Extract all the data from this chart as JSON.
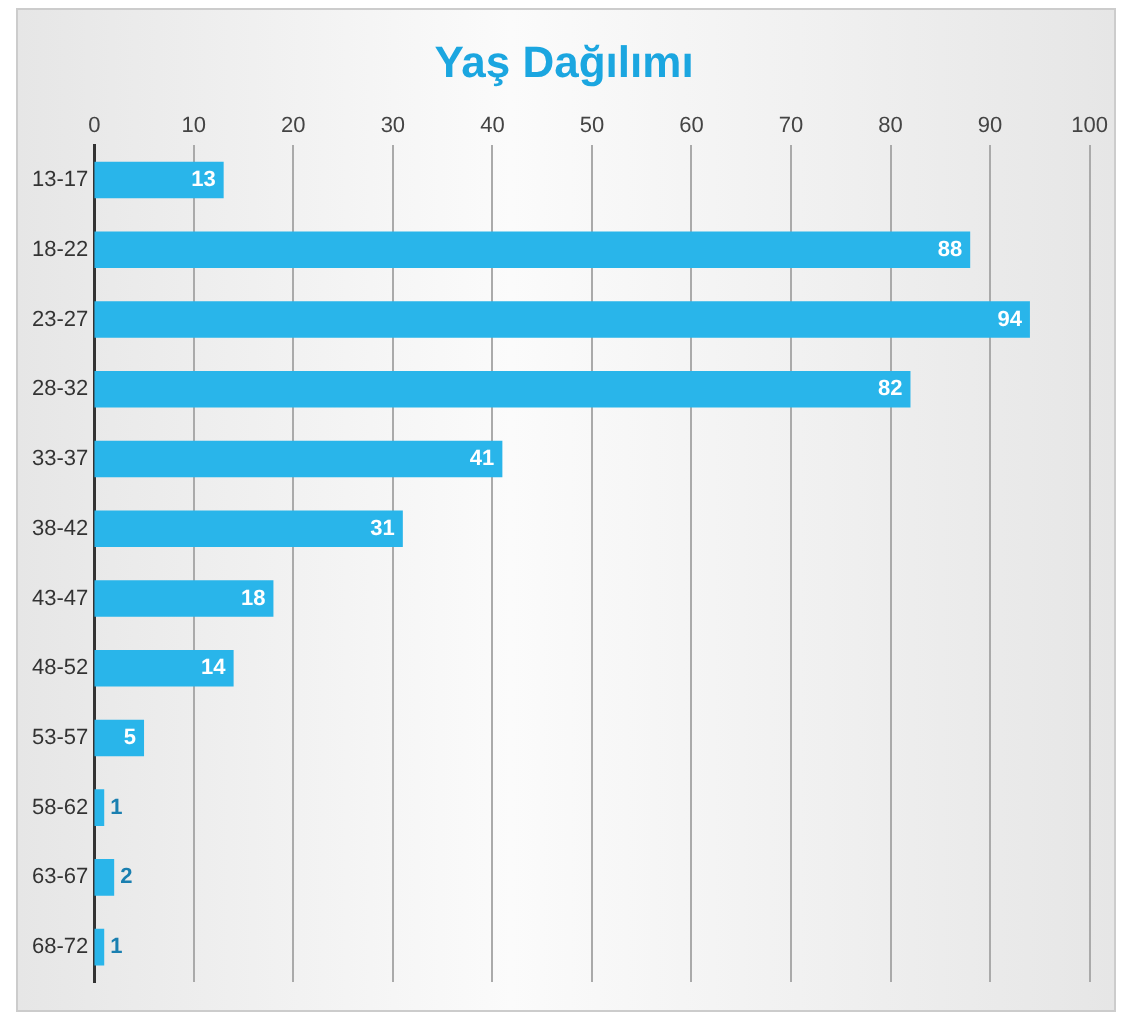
{
  "chart_data": {
    "type": "bar",
    "orientation": "horizontal",
    "title": "Yaş Dağılımı",
    "categories": [
      "13-17",
      "18-22",
      "23-27",
      "28-32",
      "33-37",
      "38-42",
      "43-47",
      "48-52",
      "53-57",
      "58-62",
      "63-67",
      "68-72"
    ],
    "values": [
      13,
      88,
      94,
      82,
      41,
      31,
      18,
      14,
      5,
      1,
      2,
      1
    ],
    "color": "#29b5ea",
    "xlim": [
      0,
      100
    ],
    "xticks": [
      0,
      10,
      20,
      30,
      40,
      50,
      60,
      70,
      80,
      90,
      100
    ],
    "grid": "x",
    "data_labels": true,
    "legend": false
  }
}
